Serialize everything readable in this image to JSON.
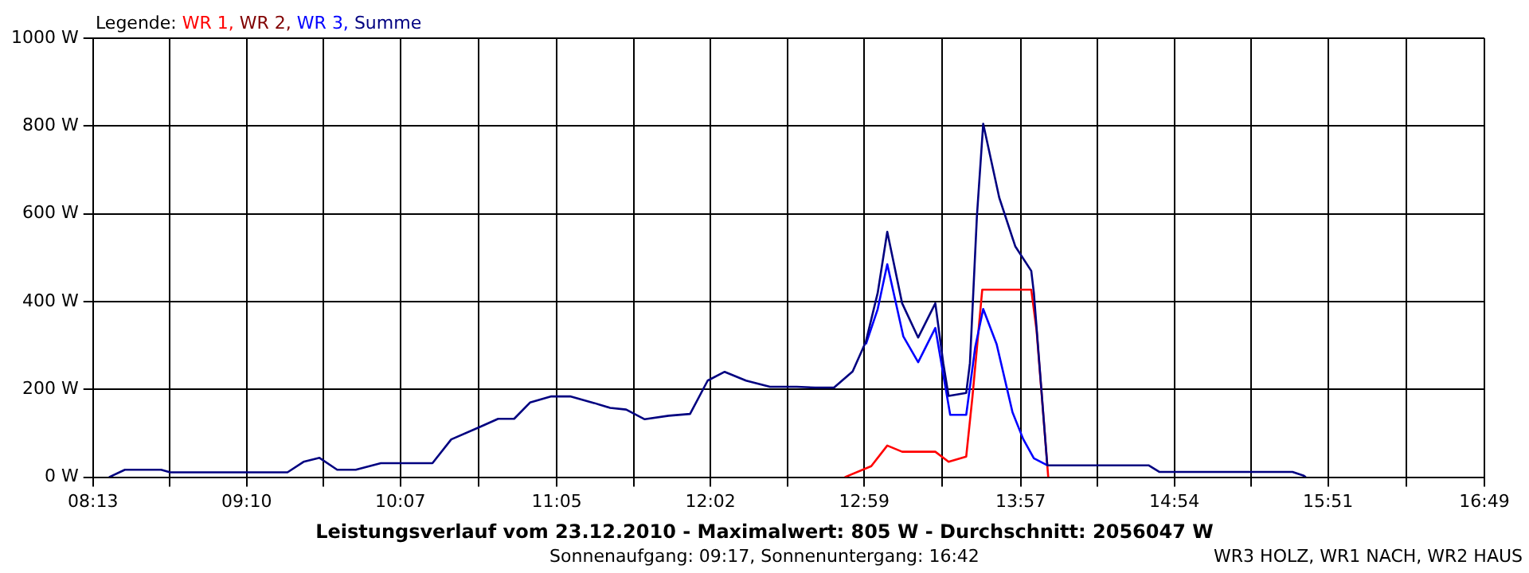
{
  "chart_data": {
    "type": "line",
    "title": "Leistungsverlauf vom 23.12.2010 - Maximalwert: 805 W - Durchschnitt: 2056047 W",
    "subtitle": "Sonnenaufgang: 09:17, Sonnenuntergang: 16:42",
    "legend_title": "Legende:",
    "annotations": [
      "WR3 HOLZ, WR1 NACH, WR2 HAUS"
    ],
    "legend": "top left",
    "grid": true,
    "marker": "none",
    "line_style": "solid",
    "xlim": [
      8.2167,
      16.8167
    ],
    "xticks": [
      {
        "value": 8.2167,
        "label": "08:13"
      },
      {
        "value": 8.6917,
        "label": null
      },
      {
        "value": 9.1667,
        "label": "09:10"
      },
      {
        "value": 9.6417,
        "label": null
      },
      {
        "value": 10.1167,
        "label": "10:07"
      },
      {
        "value": 10.6,
        "label": null
      },
      {
        "value": 11.0833,
        "label": "11:05"
      },
      {
        "value": 11.5583,
        "label": null
      },
      {
        "value": 12.0333,
        "label": "12:02"
      },
      {
        "value": 12.5083,
        "label": null
      },
      {
        "value": 12.9833,
        "label": "12:59"
      },
      {
        "value": 13.4667,
        "label": null
      },
      {
        "value": 13.95,
        "label": "13:57"
      },
      {
        "value": 14.425,
        "label": null
      },
      {
        "value": 14.9,
        "label": "14:54"
      },
      {
        "value": 15.375,
        "label": null
      },
      {
        "value": 15.85,
        "label": "15:51"
      },
      {
        "value": 16.3333,
        "label": null
      },
      {
        "value": 16.8167,
        "label": "16:49"
      }
    ],
    "ylim": [
      0,
      1000
    ],
    "yticks": [
      {
        "value": 0,
        "label": "0 W"
      },
      {
        "value": 200,
        "label": "200 W"
      },
      {
        "value": 400,
        "label": "400 W"
      },
      {
        "value": 600,
        "label": "600 W"
      },
      {
        "value": 800,
        "label": "800 W"
      },
      {
        "value": 1000,
        "label": "1000 W"
      }
    ],
    "series": [
      {
        "name": "WR 1,",
        "color": "#ff0000",
        "x": [
          12.863,
          13.027,
          13.126,
          13.218,
          13.423,
          13.505,
          13.614,
          13.653,
          13.713,
          14.016,
          14.049,
          14.121
        ],
        "values": [
          0,
          25,
          72,
          58,
          58,
          35,
          47,
          185,
          427,
          427,
          334,
          0
        ]
      },
      {
        "name": "WR 2,",
        "color": "#800000"
      },
      {
        "name": "WR 3,",
        "color": "#0000ff",
        "x": [
          12.994,
          13.067,
          13.126,
          13.225,
          13.317,
          13.423,
          13.515,
          13.614,
          13.67,
          13.719,
          13.802,
          13.9,
          13.966,
          14.032,
          14.115
        ],
        "values": [
          303,
          383,
          485,
          321,
          262,
          340,
          142,
          142,
          297,
          383,
          303,
          148,
          87,
          43,
          27
        ]
      },
      {
        "name": "Summe",
        "color": "#000080",
        "x": [
          8.316,
          8.414,
          8.638,
          8.694,
          9.419,
          9.518,
          9.617,
          9.726,
          9.841,
          9.996,
          10.315,
          10.431,
          10.605,
          10.721,
          10.82,
          10.918,
          11.05,
          11.166,
          11.314,
          11.413,
          11.512,
          11.627,
          11.775,
          11.907,
          12.016,
          12.121,
          12.253,
          12.401,
          12.566,
          12.681,
          12.797,
          12.912,
          12.994,
          13.067,
          13.126,
          13.218,
          13.317,
          13.423,
          13.472,
          13.505,
          13.614,
          13.637,
          13.68,
          13.719,
          13.818,
          13.917,
          14.016,
          14.032,
          14.115,
          14.741,
          14.807,
          15.631,
          15.697,
          15.713
        ],
        "values": [
          0,
          17,
          17,
          11,
          11,
          35,
          44,
          17,
          17,
          32,
          32,
          86,
          114,
          133,
          133,
          170,
          184,
          184,
          169,
          158,
          154,
          132,
          140,
          144,
          220,
          240,
          220,
          206,
          206,
          204,
          204,
          241,
          309,
          420,
          559,
          396,
          318,
          396,
          260,
          185,
          192,
          260,
          594,
          805,
          637,
          526,
          470,
          420,
          27,
          27,
          12,
          12,
          4,
          0
        ]
      }
    ]
  }
}
